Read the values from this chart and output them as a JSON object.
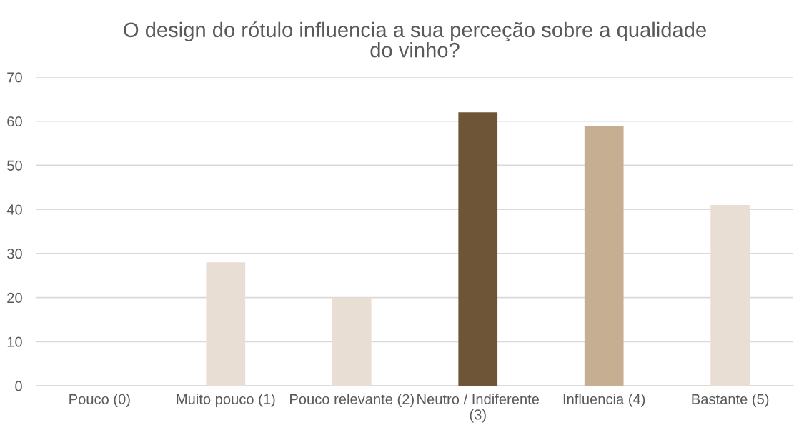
{
  "chart_data": {
    "type": "bar",
    "title": "O design do rótulo influencia a sua perceção sobre a qualidade do vinho?",
    "categories": [
      "Pouco (0)",
      "Muito pouco (1)",
      "Pouco relevante (2)",
      "Neutro / Indiferente (3)",
      "Influencia (4)",
      "Bastante (5)"
    ],
    "values": [
      0,
      28,
      20,
      62,
      59,
      41
    ],
    "colors": [
      "#e8ded4",
      "#e8ded4",
      "#e8ded4",
      "#6f5538",
      "#c6ae93",
      "#e8ded4"
    ],
    "ylim": [
      0,
      70
    ],
    "yticks": [
      0,
      10,
      20,
      30,
      40,
      50,
      60,
      70
    ],
    "grid": "y"
  }
}
